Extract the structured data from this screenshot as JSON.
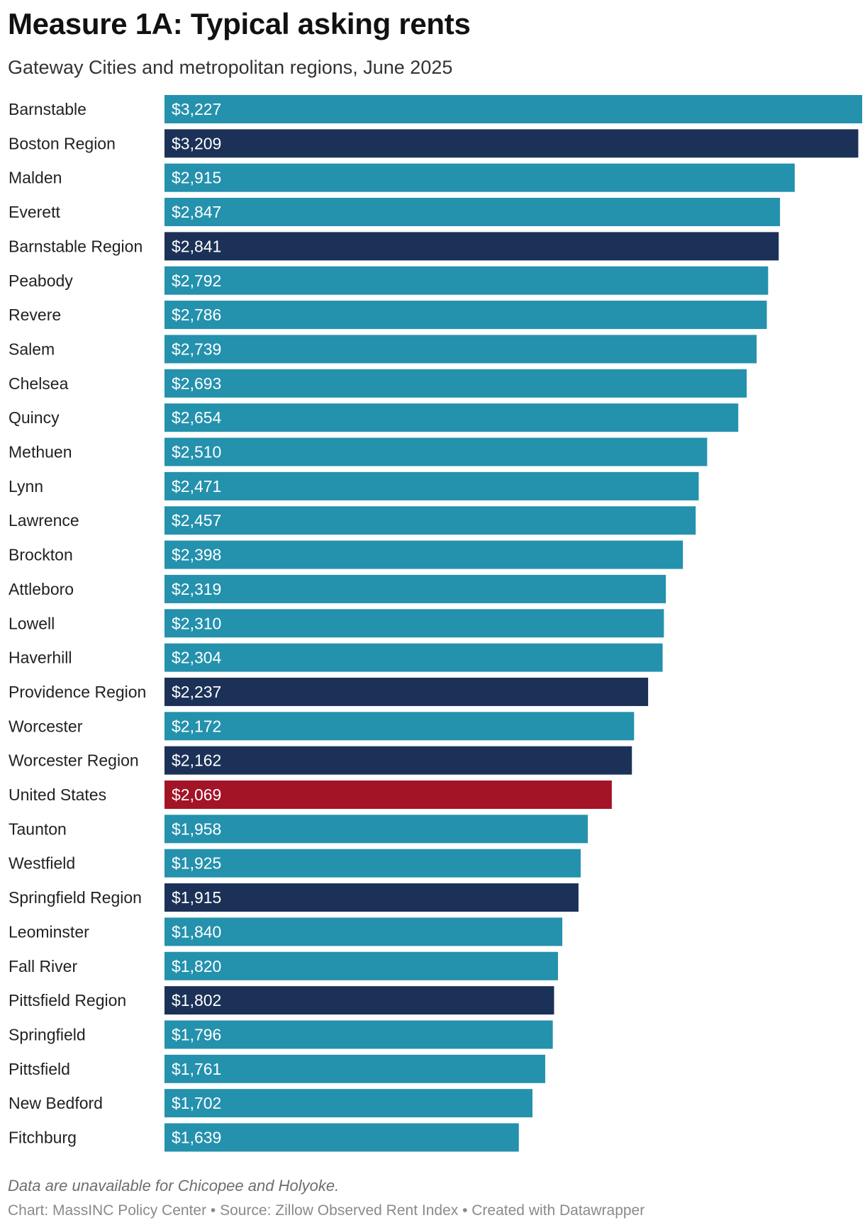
{
  "chart_data": {
    "type": "bar",
    "orientation": "horizontal",
    "title": "Measure 1A: Typical asking rents",
    "subtitle": "Gateway Cities and metropolitan regions, June 2025",
    "categories": [
      "Barnstable",
      "Boston Region",
      "Malden",
      "Everett",
      "Barnstable Region",
      "Peabody",
      "Revere",
      "Salem",
      "Chelsea",
      "Quincy",
      "Methuen",
      "Lynn",
      "Lawrence",
      "Brockton",
      "Attleboro",
      "Lowell",
      "Haverhill",
      "Providence Region",
      "Worcester",
      "Worcester Region",
      "United States",
      "Taunton",
      "Westfield",
      "Springfield Region",
      "Leominster",
      "Fall River",
      "Pittsfield Region",
      "Springfield",
      "Pittsfield",
      "New Bedford",
      "Fitchburg"
    ],
    "values": [
      3227,
      3209,
      2915,
      2847,
      2841,
      2792,
      2786,
      2739,
      2693,
      2654,
      2510,
      2471,
      2457,
      2398,
      2319,
      2310,
      2304,
      2237,
      2172,
      2162,
      2069,
      1958,
      1925,
      1915,
      1840,
      1820,
      1802,
      1796,
      1761,
      1702,
      1639
    ],
    "value_labels": [
      "$3,227",
      "$3,209",
      "$2,915",
      "$2,847",
      "$2,841",
      "$2,792",
      "$2,786",
      "$2,739",
      "$2,693",
      "$2,654",
      "$2,510",
      "$2,471",
      "$2,457",
      "$2,398",
      "$2,319",
      "$2,310",
      "$2,304",
      "$2,237",
      "$2,172",
      "$2,162",
      "$2,069",
      "$1,958",
      "$1,925",
      "$1,915",
      "$1,840",
      "$1,820",
      "$1,802",
      "$1,796",
      "$1,761",
      "$1,702",
      "$1,639"
    ],
    "groups": [
      "city",
      "region",
      "city",
      "city",
      "region",
      "city",
      "city",
      "city",
      "city",
      "city",
      "city",
      "city",
      "city",
      "city",
      "city",
      "city",
      "city",
      "region",
      "city",
      "region",
      "national",
      "city",
      "city",
      "region",
      "city",
      "city",
      "region",
      "city",
      "city",
      "city",
      "city"
    ],
    "colors": {
      "city": "#2491ad",
      "region": "#1c3157",
      "national": "#a31426"
    },
    "xlim": [
      0,
      3227
    ],
    "grid": false,
    "legend": "none"
  },
  "footer": {
    "note": "Data are unavailable for Chicopee and Holyoke.",
    "credits": "Chart: MassINC Policy Center • Source: Zillow Observed Rent Index • Created with Datawrapper"
  }
}
